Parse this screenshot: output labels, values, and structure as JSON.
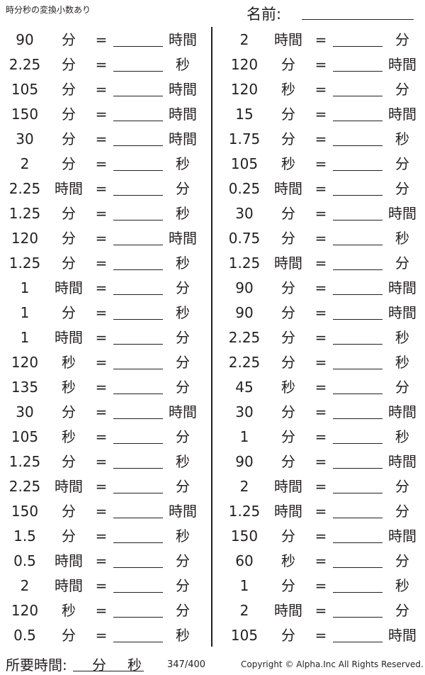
{
  "header": {
    "title": "時分秒の変換小数あり",
    "name_label": "名前:"
  },
  "left": [
    [
      "90",
      "分",
      "=",
      "時間"
    ],
    [
      "2.25",
      "分",
      "=",
      "秒"
    ],
    [
      "105",
      "分",
      "=",
      "時間"
    ],
    [
      "150",
      "分",
      "=",
      "時間"
    ],
    [
      "30",
      "分",
      "=",
      "時間"
    ],
    [
      "2",
      "分",
      "=",
      "秒"
    ],
    [
      "2.25",
      "時間",
      "=",
      "分"
    ],
    [
      "1.25",
      "分",
      "=",
      "秒"
    ],
    [
      "120",
      "分",
      "=",
      "時間"
    ],
    [
      "1.25",
      "分",
      "=",
      "秒"
    ],
    [
      "1",
      "時間",
      "=",
      "分"
    ],
    [
      "1",
      "分",
      "=",
      "秒"
    ],
    [
      "1",
      "時間",
      "=",
      "分"
    ],
    [
      "120",
      "秒",
      "=",
      "分"
    ],
    [
      "135",
      "秒",
      "=",
      "分"
    ],
    [
      "30",
      "分",
      "=",
      "時間"
    ],
    [
      "105",
      "秒",
      "=",
      "分"
    ],
    [
      "1.25",
      "分",
      "=",
      "秒"
    ],
    [
      "2.25",
      "時間",
      "=",
      "分"
    ],
    [
      "150",
      "分",
      "=",
      "時間"
    ],
    [
      "1.5",
      "分",
      "=",
      "秒"
    ],
    [
      "0.5",
      "時間",
      "=",
      "分"
    ],
    [
      "2",
      "時間",
      "=",
      "分"
    ],
    [
      "120",
      "秒",
      "=",
      "分"
    ],
    [
      "0.5",
      "分",
      "=",
      "秒"
    ]
  ],
  "right": [
    [
      "2",
      "時間",
      "=",
      "分"
    ],
    [
      "120",
      "分",
      "=",
      "時間"
    ],
    [
      "120",
      "秒",
      "=",
      "分"
    ],
    [
      "15",
      "分",
      "=",
      "時間"
    ],
    [
      "1.75",
      "分",
      "=",
      "秒"
    ],
    [
      "105",
      "秒",
      "=",
      "分"
    ],
    [
      "0.25",
      "時間",
      "=",
      "分"
    ],
    [
      "30",
      "分",
      "=",
      "時間"
    ],
    [
      "0.75",
      "分",
      "=",
      "秒"
    ],
    [
      "1.25",
      "時間",
      "=",
      "分"
    ],
    [
      "90",
      "分",
      "=",
      "時間"
    ],
    [
      "90",
      "分",
      "=",
      "時間"
    ],
    [
      "2.25",
      "分",
      "=",
      "秒"
    ],
    [
      "2.25",
      "分",
      "=",
      "秒"
    ],
    [
      "45",
      "秒",
      "=",
      "分"
    ],
    [
      "30",
      "分",
      "=",
      "時間"
    ],
    [
      "1",
      "分",
      "=",
      "秒"
    ],
    [
      "90",
      "分",
      "=",
      "時間"
    ],
    [
      "2",
      "時間",
      "=",
      "分"
    ],
    [
      "1.25",
      "時間",
      "=",
      "分"
    ],
    [
      "150",
      "分",
      "=",
      "時間"
    ],
    [
      "60",
      "秒",
      "=",
      "分"
    ],
    [
      "1",
      "分",
      "=",
      "秒"
    ],
    [
      "2",
      "時間",
      "=",
      "分"
    ],
    [
      "105",
      "分",
      "=",
      "時間"
    ]
  ],
  "footer": {
    "time_label": "所要時間:",
    "min": "分",
    "sec": "秒",
    "page": "347/400",
    "copyright": "Copyright © Alpha.Inc All Rights Reserved."
  }
}
